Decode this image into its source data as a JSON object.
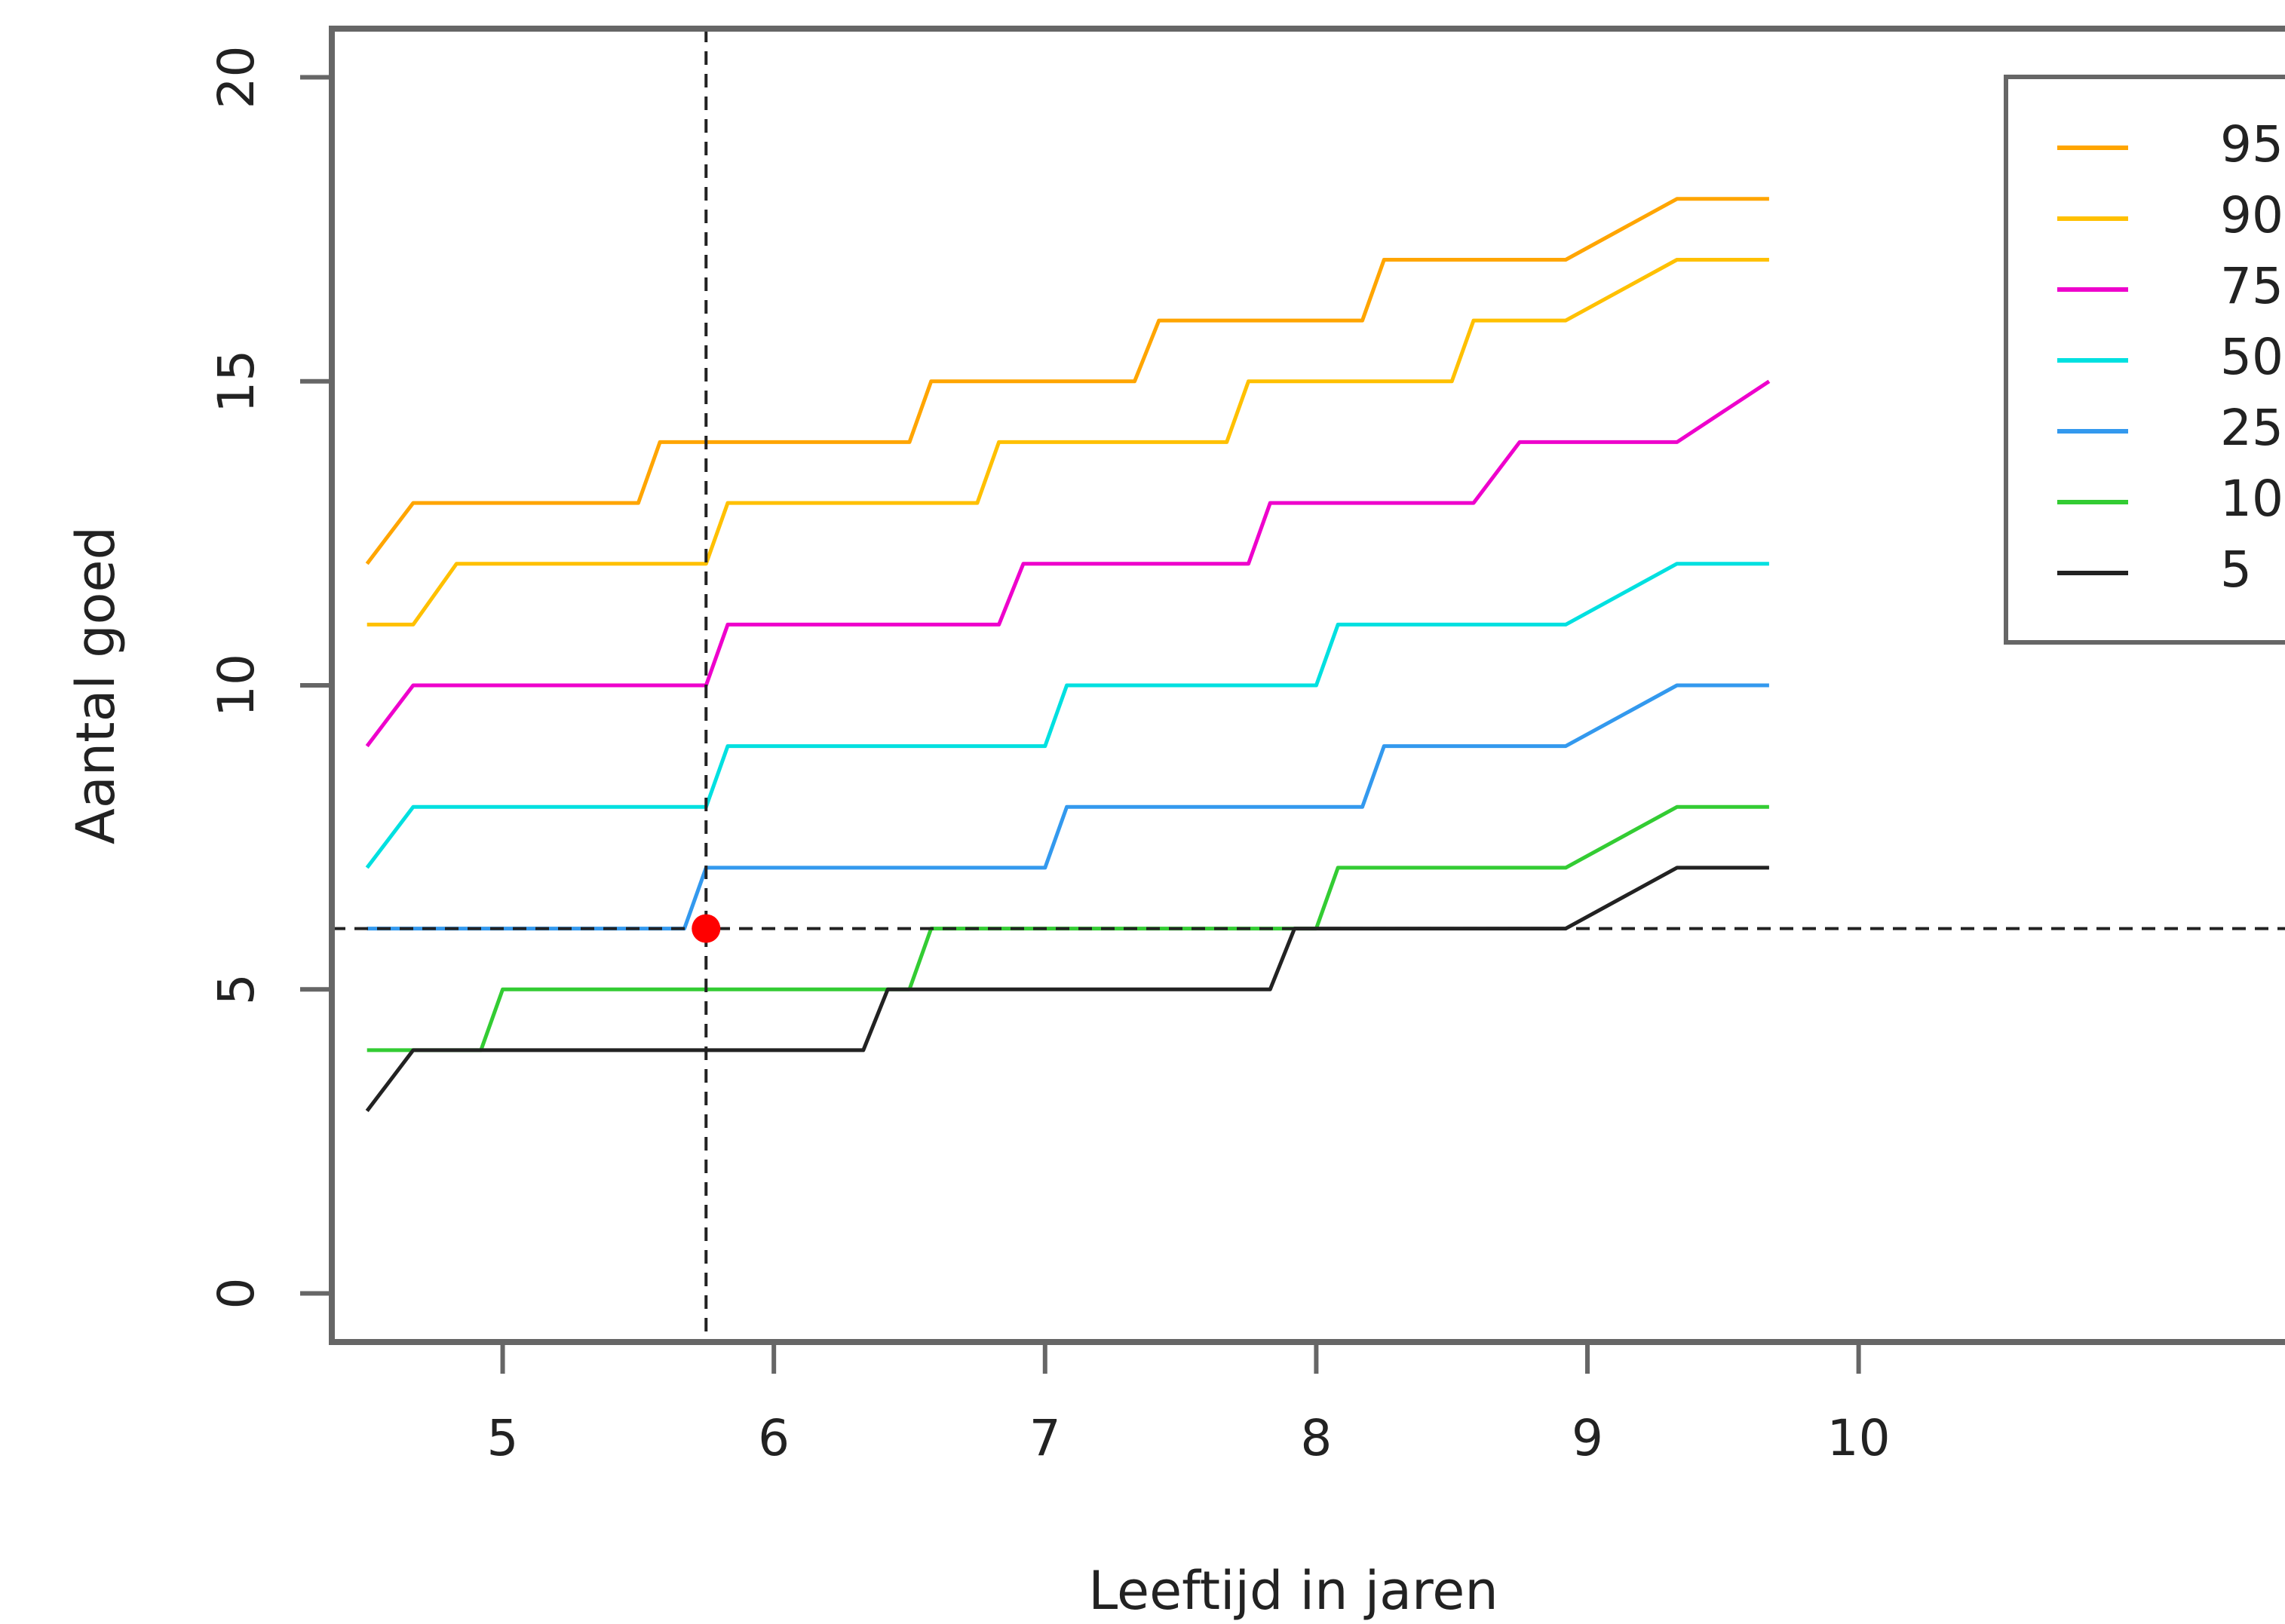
{
  "chart_data": {
    "type": "line",
    "title": "",
    "xlabel": "Leeftijd in jaren",
    "ylabel": "Aantal goed",
    "xlim": [
      4.37,
      11.6
    ],
    "ylim": [
      -0.8,
      20.8
    ],
    "xticks": [
      5,
      6,
      7,
      8,
      9,
      10
    ],
    "yticks": [
      0,
      5,
      10,
      15,
      20
    ],
    "grid": false,
    "legend_position": "top-right",
    "series": [
      {
        "name": "95",
        "color": "#FFA500",
        "points": [
          [
            4.5,
            12
          ],
          [
            4.67,
            13
          ],
          [
            5.5,
            13
          ],
          [
            5.58,
            14
          ],
          [
            6.5,
            14
          ],
          [
            6.58,
            15
          ],
          [
            7.33,
            15
          ],
          [
            7.42,
            16
          ],
          [
            8.17,
            16
          ],
          [
            8.25,
            17
          ],
          [
            8.92,
            17
          ],
          [
            9.33,
            18
          ],
          [
            9.67,
            18
          ]
        ]
      },
      {
        "name": "90",
        "color": "#FFC000",
        "points": [
          [
            4.5,
            11
          ],
          [
            4.67,
            11
          ],
          [
            4.83,
            12
          ],
          [
            5.75,
            12
          ],
          [
            5.83,
            13
          ],
          [
            6.75,
            13
          ],
          [
            6.83,
            14
          ],
          [
            7.67,
            14
          ],
          [
            7.75,
            15
          ],
          [
            8.5,
            15
          ],
          [
            8.58,
            16
          ],
          [
            8.92,
            16
          ],
          [
            9.33,
            17
          ],
          [
            9.67,
            17
          ]
        ]
      },
      {
        "name": "75",
        "color": "#EE00CC",
        "points": [
          [
            4.5,
            9
          ],
          [
            4.67,
            10
          ],
          [
            5.75,
            10
          ],
          [
            5.83,
            11
          ],
          [
            6.83,
            11
          ],
          [
            6.92,
            12
          ],
          [
            7.75,
            12
          ],
          [
            7.83,
            13
          ],
          [
            8.58,
            13
          ],
          [
            8.75,
            14
          ],
          [
            9.33,
            14
          ],
          [
            9.67,
            15
          ]
        ]
      },
      {
        "name": "50",
        "color": "#00E0E0",
        "points": [
          [
            4.5,
            7
          ],
          [
            4.67,
            8
          ],
          [
            5.75,
            8
          ],
          [
            5.83,
            9
          ],
          [
            7.0,
            9
          ],
          [
            7.08,
            10
          ],
          [
            8.0,
            10
          ],
          [
            8.08,
            11
          ],
          [
            8.92,
            11
          ],
          [
            9.33,
            12
          ],
          [
            9.67,
            12
          ]
        ]
      },
      {
        "name": "25",
        "color": "#3399EE",
        "points": [
          [
            4.5,
            6
          ],
          [
            5.67,
            6
          ],
          [
            5.75,
            7
          ],
          [
            7.0,
            7
          ],
          [
            7.08,
            8
          ],
          [
            8.17,
            8
          ],
          [
            8.25,
            9
          ],
          [
            8.92,
            9
          ],
          [
            9.33,
            10
          ],
          [
            9.67,
            10
          ]
        ]
      },
      {
        "name": "10",
        "color": "#33CC33",
        "points": [
          [
            4.5,
            4
          ],
          [
            4.92,
            4
          ],
          [
            5.0,
            5
          ],
          [
            6.5,
            5
          ],
          [
            6.58,
            6
          ],
          [
            8.0,
            6
          ],
          [
            8.08,
            7
          ],
          [
            8.92,
            7
          ],
          [
            9.33,
            8
          ],
          [
            9.67,
            8
          ]
        ]
      },
      {
        "name": "5",
        "color": "#222222",
        "points": [
          [
            4.5,
            3
          ],
          [
            4.67,
            4
          ],
          [
            6.33,
            4
          ],
          [
            6.42,
            5
          ],
          [
            7.83,
            5
          ],
          [
            7.92,
            6
          ],
          [
            8.92,
            6
          ],
          [
            9.33,
            7
          ],
          [
            9.67,
            7
          ]
        ]
      }
    ],
    "marker": {
      "x": 5.75,
      "y": 6,
      "color": "#FF0000"
    },
    "reference_lines": {
      "vertical_x": 5.75,
      "horizontal_y": 6
    }
  }
}
